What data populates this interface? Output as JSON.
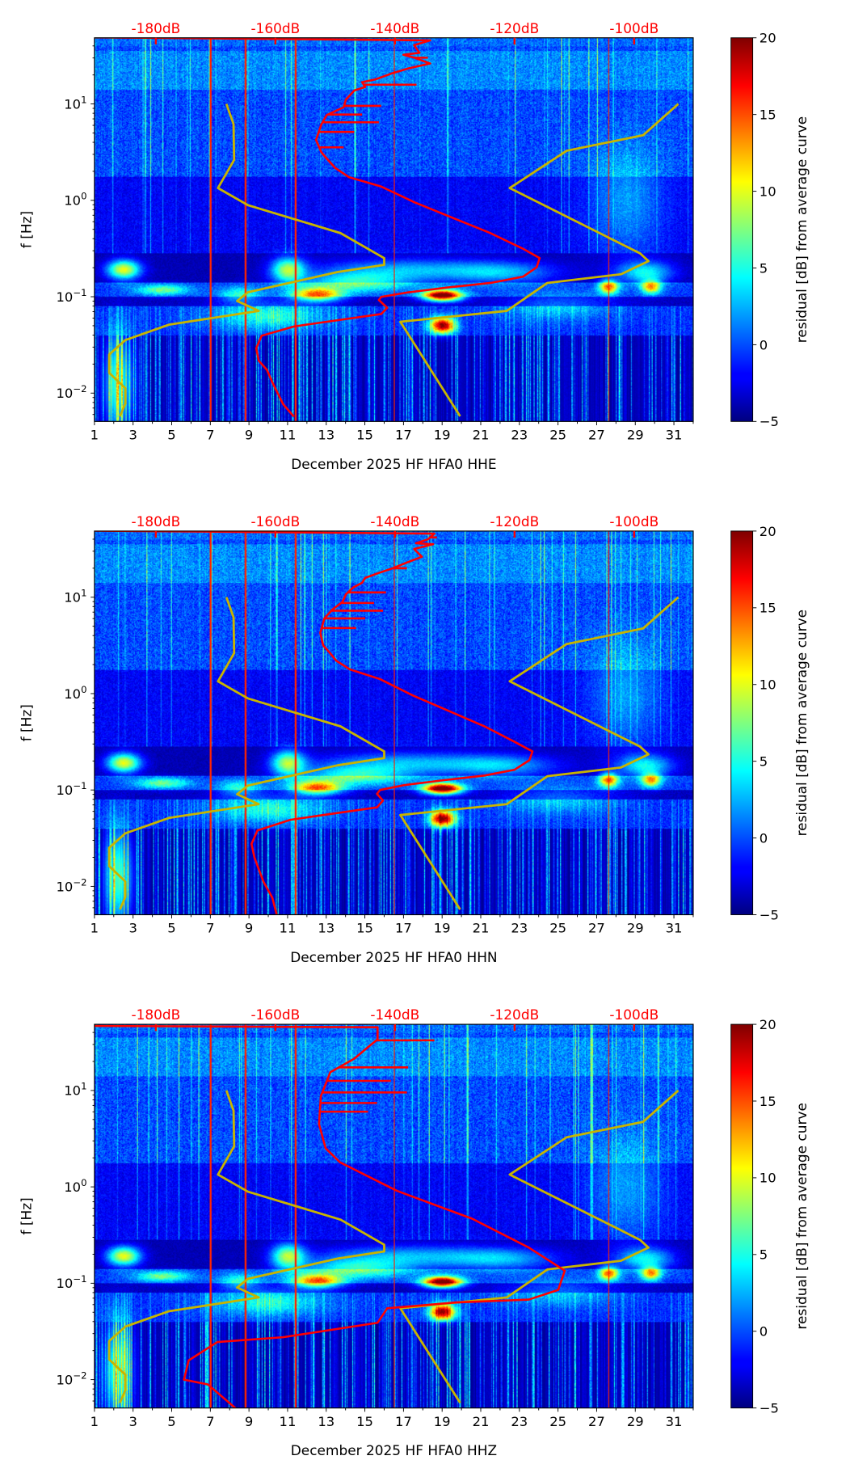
{
  "chart_data": [
    {
      "type": "heatmap",
      "xlabel": "December 2025 HF HFA0  HHE",
      "ylabel": "f [Hz]",
      "xlim": [
        1,
        32
      ],
      "ylim_hz": [
        0.005,
        48
      ],
      "yscale": "log",
      "x_ticks": [
        "1",
        "3",
        "5",
        "7",
        "9",
        "11",
        "13",
        "15",
        "17",
        "19",
        "21",
        "23",
        "25",
        "27",
        "29",
        "31"
      ],
      "y_ticks": [
        {
          "base": "10",
          "exp": "1",
          "log10": 1
        },
        {
          "base": "10",
          "exp": "0",
          "log10": 0
        },
        {
          "base": "10",
          "exp": "−1",
          "log10": -1
        },
        {
          "base": "10",
          "exp": "−2",
          "log10": -2
        }
      ],
      "top_axis": {
        "labels": [
          "-180dB",
          "-160dB",
          "-140dB",
          "-120dB",
          "-100dB"
        ],
        "values": [
          -180,
          -160,
          -140,
          -120,
          -100
        ],
        "range_db": [
          -190.3,
          -90.1
        ],
        "color": "#ff0000"
      },
      "colorbar": {
        "label": "residual [dB] from average curve",
        "range": [
          -5,
          20
        ],
        "ticks": [
          "−5",
          "0",
          "5",
          "10",
          "15",
          "20"
        ],
        "cmap": "jet"
      },
      "psd_curve": {
        "color": "#ff0000",
        "points_db_log10hz": [
          [
            -190.3,
            1.69
          ],
          [
            -134.1,
            1.66
          ],
          [
            -136.8,
            1.61
          ],
          [
            -135.9,
            1.53
          ],
          [
            -138.6,
            1.51
          ],
          [
            -136.8,
            1.48
          ],
          [
            -134.1,
            1.42
          ],
          [
            -137.7,
            1.37
          ],
          [
            -140.4,
            1.32
          ],
          [
            -143.2,
            1.256
          ],
          [
            -145.5,
            1.225
          ],
          [
            -145.0,
            1.175
          ],
          [
            -146.8,
            1.14
          ],
          [
            -148.2,
            1.046
          ],
          [
            -148.6,
            0.966
          ],
          [
            -151.4,
            0.885
          ],
          [
            -152.3,
            0.788
          ],
          [
            -153.2,
            0.627
          ],
          [
            -152.3,
            0.498
          ],
          [
            -151.4,
            0.433
          ],
          [
            -150.0,
            0.336
          ],
          [
            -147.7,
            0.24
          ],
          [
            -142.3,
            0.143
          ],
          [
            -136.8,
            -0.019
          ],
          [
            -130.4,
            -0.18
          ],
          [
            -124.0,
            -0.341
          ],
          [
            -118.6,
            -0.502
          ],
          [
            -115.8,
            -0.599
          ],
          [
            -116.3,
            -0.695
          ],
          [
            -118.6,
            -0.792
          ],
          [
            -124.0,
            -0.857
          ],
          [
            -131.3,
            -0.905
          ],
          [
            -137.7,
            -0.954
          ],
          [
            -142.3,
            -1.002
          ],
          [
            -142.7,
            -1.034
          ],
          [
            -141.3,
            -1.115
          ],
          [
            -142.3,
            -1.179
          ],
          [
            -151.4,
            -1.26
          ],
          [
            -156.9,
            -1.309
          ],
          [
            -162.3,
            -1.405
          ],
          [
            -163.2,
            -1.534
          ],
          [
            -162.8,
            -1.663
          ],
          [
            -161.4,
            -1.76
          ],
          [
            -160.5,
            -1.889
          ],
          [
            -158.7,
            -2.115
          ],
          [
            -156.9,
            -2.244
          ]
        ],
        "spikes_db_log10hz": [
          [
            -134.5,
            1.48
          ],
          [
            -136.4,
            1.2
          ],
          [
            -142.3,
            0.98
          ],
          [
            -145.5,
            0.89
          ],
          [
            -142.7,
            0.81
          ],
          [
            -146.8,
            0.71
          ],
          [
            -148.6,
            0.55
          ]
        ]
      },
      "low_noise_model": {
        "color": "#c8b400",
        "points_db_log10hz": [
          [
            -168.2,
            1.0
          ],
          [
            -167.0,
            0.79
          ],
          [
            -166.9,
            0.42
          ],
          [
            -169.6,
            0.127
          ],
          [
            -164.6,
            -0.05
          ],
          [
            -149.1,
            -0.34
          ],
          [
            -141.8,
            -0.6
          ],
          [
            -141.8,
            -0.67
          ],
          [
            -149.6,
            -0.744
          ],
          [
            -164.6,
            -0.954
          ],
          [
            -166.4,
            -1.044
          ],
          [
            -162.8,
            -1.147
          ],
          [
            -177.8,
            -1.29
          ],
          [
            -185.1,
            -1.45
          ],
          [
            -187.8,
            -1.6
          ],
          [
            -187.8,
            -1.79
          ],
          [
            -185.1,
            -1.95
          ],
          [
            -185.1,
            -2.11
          ],
          [
            -186.0,
            -2.24
          ]
        ]
      },
      "high_noise_model": {
        "color": "#c8b400",
        "points_db_log10hz": [
          [
            -92.6,
            1.0
          ],
          [
            -98.5,
            0.675
          ],
          [
            -111.3,
            0.514
          ],
          [
            -120.8,
            0.127
          ],
          [
            -99.0,
            -0.55
          ],
          [
            -97.6,
            -0.63
          ],
          [
            -102.2,
            -0.767
          ],
          [
            -114.5,
            -0.857
          ],
          [
            -121.3,
            -1.147
          ],
          [
            -139.1,
            -1.26
          ],
          [
            -129.1,
            -2.24
          ]
        ]
      }
    },
    {
      "type": "heatmap",
      "xlabel": "December 2025 HF HFA0  HHN",
      "ylabel": "f [Hz]",
      "xlim": [
        1,
        32
      ],
      "ylim_hz": [
        0.005,
        48
      ],
      "yscale": "log",
      "x_ticks": [
        "1",
        "3",
        "5",
        "7",
        "9",
        "11",
        "13",
        "15",
        "17",
        "19",
        "21",
        "23",
        "25",
        "27",
        "29",
        "31"
      ],
      "y_ticks": [
        {
          "base": "10",
          "exp": "1",
          "log10": 1
        },
        {
          "base": "10",
          "exp": "0",
          "log10": 0
        },
        {
          "base": "10",
          "exp": "−1",
          "log10": -1
        },
        {
          "base": "10",
          "exp": "−2",
          "log10": -2
        }
      ],
      "top_axis": {
        "labels": [
          "-180dB",
          "-160dB",
          "-140dB",
          "-120dB",
          "-100dB"
        ],
        "values": [
          -180,
          -160,
          -140,
          -120,
          -100
        ],
        "range_db": [
          -190.3,
          -90.1
        ],
        "color": "#ff0000"
      },
      "colorbar": {
        "label": "residual [dB] from average curve",
        "range": [
          -5,
          20
        ],
        "ticks": [
          "−5",
          "0",
          "5",
          "10",
          "15",
          "20"
        ],
        "cmap": "jet"
      },
      "psd_curve": {
        "color": "#ff0000",
        "points_db_log10hz": [
          [
            -190.3,
            1.69
          ],
          [
            -133.4,
            1.66
          ],
          [
            -134.5,
            1.6
          ],
          [
            -136.5,
            1.56
          ],
          [
            -133.6,
            1.55
          ],
          [
            -136.8,
            1.5
          ],
          [
            -135.5,
            1.42
          ],
          [
            -138.0,
            1.36
          ],
          [
            -140.4,
            1.3
          ],
          [
            -142.8,
            1.25
          ],
          [
            -145.0,
            1.2
          ],
          [
            -145.5,
            1.15
          ],
          [
            -147.0,
            1.1
          ],
          [
            -148.2,
            1.03
          ],
          [
            -148.8,
            0.95
          ],
          [
            -150.5,
            0.87
          ],
          [
            -151.8,
            0.78
          ],
          [
            -152.5,
            0.63
          ],
          [
            -152.0,
            0.5
          ],
          [
            -151.0,
            0.43
          ],
          [
            -149.8,
            0.34
          ],
          [
            -147.5,
            0.25
          ],
          [
            -142.5,
            0.15
          ],
          [
            -137.0,
            -0.02
          ],
          [
            -131.0,
            -0.18
          ],
          [
            -125.0,
            -0.34
          ],
          [
            -120.0,
            -0.5
          ],
          [
            -117.0,
            -0.6
          ],
          [
            -117.5,
            -0.69
          ],
          [
            -120.0,
            -0.79
          ],
          [
            -125.0,
            -0.85
          ],
          [
            -132.0,
            -0.9
          ],
          [
            -138.5,
            -0.95
          ],
          [
            -142.5,
            -1.0
          ],
          [
            -143.0,
            -1.04
          ],
          [
            -142.0,
            -1.11
          ],
          [
            -143.0,
            -1.18
          ],
          [
            -152.0,
            -1.26
          ],
          [
            -157.5,
            -1.31
          ],
          [
            -163.0,
            -1.42
          ],
          [
            -164.0,
            -1.56
          ],
          [
            -163.5,
            -1.7
          ],
          [
            -162.8,
            -1.82
          ],
          [
            -162.0,
            -1.95
          ],
          [
            -160.5,
            -2.12
          ],
          [
            -159.8,
            -2.29
          ]
        ],
        "spikes_db_log10hz": [
          [
            -133.0,
            1.62
          ],
          [
            -138.0,
            1.3
          ],
          [
            -141.5,
            1.05
          ],
          [
            -143.5,
            0.94
          ],
          [
            -142.0,
            0.86
          ],
          [
            -145.0,
            0.78
          ],
          [
            -146.5,
            0.68
          ]
        ]
      },
      "low_noise_model": {
        "color": "#c8b400",
        "points_db_log10hz": [
          [
            -168.2,
            1.0
          ],
          [
            -167.0,
            0.79
          ],
          [
            -166.9,
            0.42
          ],
          [
            -169.6,
            0.127
          ],
          [
            -164.6,
            -0.05
          ],
          [
            -149.1,
            -0.34
          ],
          [
            -141.8,
            -0.6
          ],
          [
            -141.8,
            -0.67
          ],
          [
            -149.6,
            -0.744
          ],
          [
            -164.6,
            -0.954
          ],
          [
            -166.4,
            -1.044
          ],
          [
            -162.8,
            -1.147
          ],
          [
            -177.8,
            -1.29
          ],
          [
            -185.1,
            -1.45
          ],
          [
            -187.8,
            -1.6
          ],
          [
            -187.8,
            -1.79
          ],
          [
            -185.1,
            -1.95
          ],
          [
            -185.1,
            -2.11
          ],
          [
            -186.0,
            -2.24
          ]
        ]
      },
      "high_noise_model": {
        "color": "#c8b400",
        "points_db_log10hz": [
          [
            -92.6,
            1.0
          ],
          [
            -98.5,
            0.675
          ],
          [
            -111.3,
            0.514
          ],
          [
            -120.8,
            0.127
          ],
          [
            -99.0,
            -0.55
          ],
          [
            -97.6,
            -0.63
          ],
          [
            -102.2,
            -0.767
          ],
          [
            -114.5,
            -0.857
          ],
          [
            -121.3,
            -1.147
          ],
          [
            -139.1,
            -1.26
          ],
          [
            -129.1,
            -2.24
          ]
        ]
      }
    },
    {
      "type": "heatmap",
      "xlabel": "December 2025 HF HFA0  HHZ",
      "ylabel": "f [Hz]",
      "xlim": [
        1,
        32
      ],
      "ylim_hz": [
        0.005,
        48
      ],
      "yscale": "log",
      "x_ticks": [
        "1",
        "3",
        "5",
        "7",
        "9",
        "11",
        "13",
        "15",
        "17",
        "19",
        "21",
        "23",
        "25",
        "27",
        "29",
        "31"
      ],
      "y_ticks": [
        {
          "base": "10",
          "exp": "1",
          "log10": 1
        },
        {
          "base": "10",
          "exp": "0",
          "log10": 0
        },
        {
          "base": "10",
          "exp": "−1",
          "log10": -1
        },
        {
          "base": "10",
          "exp": "−2",
          "log10": -2
        }
      ],
      "top_axis": {
        "labels": [
          "-180dB",
          "-160dB",
          "-140dB",
          "-120dB",
          "-100dB"
        ],
        "values": [
          -180,
          -160,
          -140,
          -120,
          -100
        ],
        "range_db": [
          -190.3,
          -90.1
        ],
        "color": "#ff0000"
      },
      "colorbar": {
        "label": "residual [dB] from average curve",
        "range": [
          -5,
          20
        ],
        "ticks": [
          "−5",
          "0",
          "5",
          "10",
          "15",
          "20"
        ],
        "cmap": "jet"
      },
      "psd_curve": {
        "color": "#ff0000",
        "points_db_log10hz": [
          [
            -190.3,
            1.67
          ],
          [
            -142.9,
            1.656
          ],
          [
            -142.9,
            1.53
          ],
          [
            -144.5,
            1.45
          ],
          [
            -146.8,
            1.33
          ],
          [
            -150.8,
            1.19
          ],
          [
            -152.4,
            0.94
          ],
          [
            -152.7,
            0.65
          ],
          [
            -151.6,
            0.4
          ],
          [
            -149.2,
            0.255
          ],
          [
            -139.7,
            -0.04
          ],
          [
            -127.1,
            -0.33
          ],
          [
            -117.6,
            -0.63
          ],
          [
            -111.6,
            -0.87
          ],
          [
            -112.7,
            -1.07
          ],
          [
            -117.6,
            -1.17
          ],
          [
            -130.0,
            -1.2
          ],
          [
            -141.3,
            -1.26
          ],
          [
            -142.9,
            -1.41
          ],
          [
            -158.7,
            -1.56
          ],
          [
            -169.7,
            -1.61
          ],
          [
            -174.5,
            -1.8
          ],
          [
            -175.3,
            -2.0
          ],
          [
            -171.3,
            -2.05
          ],
          [
            -166.6,
            -2.3
          ]
        ],
        "spikes_db_log10hz": [
          [
            -133.4,
            1.52
          ],
          [
            -137.8,
            1.24
          ],
          [
            -140.7,
            1.1
          ],
          [
            -138.0,
            0.98
          ],
          [
            -143.0,
            0.87
          ],
          [
            -144.5,
            0.78
          ]
        ]
      },
      "low_noise_model": {
        "color": "#c8b400",
        "points_db_log10hz": [
          [
            -168.2,
            1.0
          ],
          [
            -167.0,
            0.79
          ],
          [
            -166.9,
            0.42
          ],
          [
            -169.6,
            0.127
          ],
          [
            -164.6,
            -0.05
          ],
          [
            -149.1,
            -0.34
          ],
          [
            -141.8,
            -0.6
          ],
          [
            -141.8,
            -0.67
          ],
          [
            -149.6,
            -0.744
          ],
          [
            -164.6,
            -0.954
          ],
          [
            -166.4,
            -1.044
          ],
          [
            -162.8,
            -1.147
          ],
          [
            -177.8,
            -1.29
          ],
          [
            -185.1,
            -1.45
          ],
          [
            -187.8,
            -1.6
          ],
          [
            -187.8,
            -1.79
          ],
          [
            -185.1,
            -1.95
          ],
          [
            -185.1,
            -2.11
          ],
          [
            -186.0,
            -2.24
          ]
        ]
      },
      "high_noise_model": {
        "color": "#c8b400",
        "points_db_log10hz": [
          [
            -92.6,
            1.0
          ],
          [
            -98.5,
            0.675
          ],
          [
            -111.3,
            0.514
          ],
          [
            -120.8,
            0.127
          ],
          [
            -99.0,
            -0.55
          ],
          [
            -97.6,
            -0.63
          ],
          [
            -102.2,
            -0.767
          ],
          [
            -114.5,
            -0.857
          ],
          [
            -121.3,
            -1.147
          ],
          [
            -139.1,
            -1.26
          ],
          [
            -129.1,
            -2.24
          ]
        ]
      }
    }
  ]
}
